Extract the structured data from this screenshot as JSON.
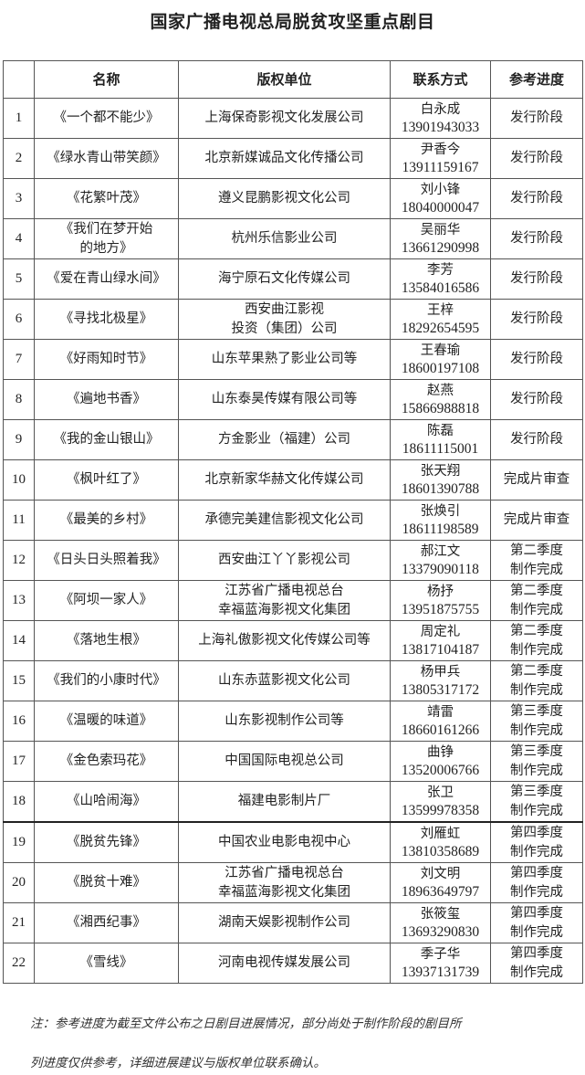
{
  "title": "国家广播电视总局脱贫攻坚重点剧目",
  "table": {
    "headers": [
      "",
      "名称",
      "版权单位",
      "联系方式",
      "参考进度"
    ],
    "rows": [
      {
        "no": "1",
        "name": [
          "《一个都不能少》"
        ],
        "company": [
          "上海保奇影视文化发展公司"
        ],
        "contact": "白永成",
        "phone": "13901943033",
        "progress": [
          "发行阶段"
        ]
      },
      {
        "no": "2",
        "name": [
          "《绿水青山带笑颜》"
        ],
        "company": [
          "北京新媒诚品文化传播公司"
        ],
        "contact": "尹香今",
        "phone": "13911159167",
        "progress": [
          "发行阶段"
        ]
      },
      {
        "no": "3",
        "name": [
          "《花繁叶茂》"
        ],
        "company": [
          "遵义昆鹏影视文化公司"
        ],
        "contact": "刘小锋",
        "phone": "18040000047",
        "progress": [
          "发行阶段"
        ]
      },
      {
        "no": "4",
        "name": [
          "《我们在梦开始",
          "的地方》"
        ],
        "company": [
          "杭州乐信影业公司"
        ],
        "contact": "吴丽华",
        "phone": "13661290998",
        "progress": [
          "发行阶段"
        ]
      },
      {
        "no": "5",
        "name": [
          "《爱在青山绿水间》"
        ],
        "company": [
          "海宁原石文化传媒公司"
        ],
        "contact": "李芳",
        "phone": "13584016586",
        "progress": [
          "发行阶段"
        ]
      },
      {
        "no": "6",
        "name": [
          "《寻找北极星》"
        ],
        "company": [
          "西安曲江影视",
          "投资（集团）公司"
        ],
        "contact": "王梓",
        "phone": "18292654595",
        "progress": [
          "发行阶段"
        ]
      },
      {
        "no": "7",
        "name": [
          "《好雨知时节》"
        ],
        "company": [
          "山东苹果熟了影业公司等"
        ],
        "contact": "王春瑜",
        "phone": "18600197108",
        "progress": [
          "发行阶段"
        ]
      },
      {
        "no": "8",
        "name": [
          "《遍地书香》"
        ],
        "company": [
          "山东泰昊传媒有限公司等"
        ],
        "contact": "赵燕",
        "phone": "15866988818",
        "progress": [
          "发行阶段"
        ]
      },
      {
        "no": "9",
        "name": [
          "《我的金山银山》"
        ],
        "company": [
          "方金影业（福建）公司"
        ],
        "contact": "陈磊",
        "phone": "18611115001",
        "progress": [
          "发行阶段"
        ]
      },
      {
        "no": "10",
        "name": [
          "《枫叶红了》"
        ],
        "company": [
          "北京新家华赫文化传媒公司"
        ],
        "contact": "张天翔",
        "phone": "18601390788",
        "progress": [
          "完成片审查"
        ]
      },
      {
        "no": "11",
        "name": [
          "《最美的乡村》"
        ],
        "company": [
          "承德完美建信影视文化公司"
        ],
        "contact": "张焕引",
        "phone": "18611198589",
        "progress": [
          "完成片审查"
        ]
      },
      {
        "no": "12",
        "name": [
          "《日头日头照着我》"
        ],
        "company": [
          "西安曲江丫丫影视公司"
        ],
        "contact": "郝江文",
        "phone": "13379090118",
        "progress": [
          "第二季度",
          "制作完成"
        ]
      },
      {
        "no": "13",
        "name": [
          "《阿坝一家人》"
        ],
        "company": [
          "江苏省广播电视总台",
          "幸福蓝海影视文化集团"
        ],
        "contact": "杨抒",
        "phone": "13951875755",
        "progress": [
          "第二季度",
          "制作完成"
        ]
      },
      {
        "no": "14",
        "name": [
          "《落地生根》"
        ],
        "company": [
          "上海礼傲影视文化传媒公司等"
        ],
        "contact": "周定礼",
        "phone": "13817104187",
        "progress": [
          "第二季度",
          "制作完成"
        ]
      },
      {
        "no": "15",
        "name": [
          "《我们的小康时代》"
        ],
        "company": [
          "山东赤蓝影视文化公司"
        ],
        "contact": "杨甲兵",
        "phone": "13805317172",
        "progress": [
          "第二季度",
          "制作完成"
        ]
      },
      {
        "no": "16",
        "name": [
          "《温暖的味道》"
        ],
        "company": [
          "山东影视制作公司等"
        ],
        "contact": "靖雷",
        "phone": "18660161266",
        "progress": [
          "第三季度",
          "制作完成"
        ]
      },
      {
        "no": "17",
        "name": [
          "《金色索玛花》"
        ],
        "company": [
          "中国国际电视总公司"
        ],
        "contact": "曲铮",
        "phone": "13520006766",
        "progress": [
          "第三季度",
          "制作完成"
        ]
      },
      {
        "no": "18",
        "name": [
          "《山哈闹海》"
        ],
        "company": [
          "福建电影制片厂"
        ],
        "contact": "张卫",
        "phone": "13599978358",
        "progress": [
          "第三季度",
          "制作完成"
        ]
      },
      {
        "no": "19",
        "name": [
          "《脱贫先锋》"
        ],
        "company": [
          "中国农业电影电视中心"
        ],
        "contact": "刘雁虹",
        "phone": "13810358689",
        "progress": [
          "第四季度",
          "制作完成"
        ]
      },
      {
        "no": "20",
        "name": [
          "《脱贫十难》"
        ],
        "company": [
          "江苏省广播电视总台",
          "幸福蓝海影视文化集团"
        ],
        "contact": "刘文明",
        "phone": "18963649797",
        "progress": [
          "第四季度",
          "制作完成"
        ]
      },
      {
        "no": "21",
        "name": [
          "《湘西纪事》"
        ],
        "company": [
          "湖南天娱影视制作公司"
        ],
        "contact": "张筱玺",
        "phone": "13693290830",
        "progress": [
          "第四季度",
          "制作完成"
        ]
      },
      {
        "no": "22",
        "name": [
          "《雪线》"
        ],
        "company": [
          "河南电视传媒发展公司"
        ],
        "contact": "季子华",
        "phone": "13937131739",
        "progress": [
          "第四季度",
          "制作完成"
        ]
      }
    ]
  },
  "note": {
    "line1": "注：参考进度为截至文件公布之日剧目进展情况，部分尚处于制作阶段的剧目所",
    "line2": "列进度仅供参考，详细进展建议与版权单位联系确认。"
  }
}
